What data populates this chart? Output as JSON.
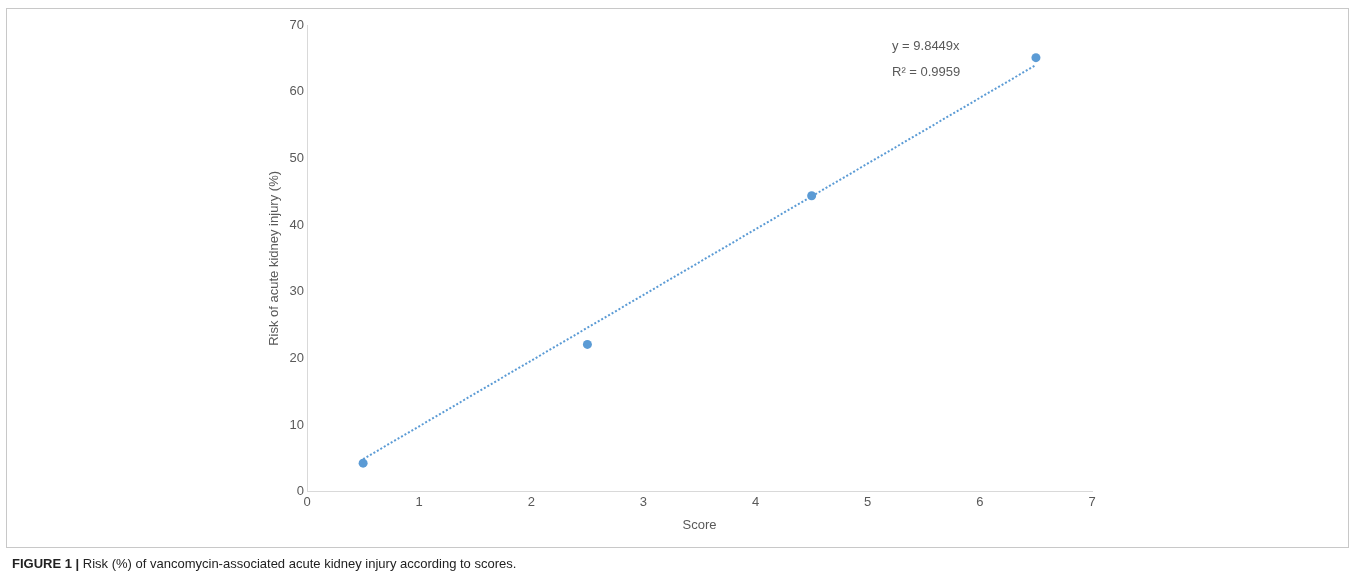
{
  "chart_data": {
    "type": "scatter",
    "xlabel": "Score",
    "ylabel": "Risk of acute kidney injury (%)",
    "xlim": [
      0,
      7
    ],
    "xticks": [
      0,
      1,
      2,
      3,
      4,
      5,
      6,
      7
    ],
    "ylim": [
      0,
      70
    ],
    "yticks": [
      0,
      10,
      20,
      30,
      40,
      50,
      60,
      70
    ],
    "grid": false,
    "legend": false,
    "marker": "circle",
    "series": [
      {
        "type": "scatter",
        "color": "#5b9bd5",
        "x": [
          0.5,
          2.5,
          4.5,
          6.5
        ],
        "values": [
          4.3,
          22.1,
          44.4,
          65.1
        ]
      },
      {
        "type": "line",
        "color": "#5b9bd5",
        "line_style": "dotted",
        "marker": "none",
        "x": [
          0.5,
          6.5
        ],
        "values": [
          4.9,
          64.0
        ]
      }
    ],
    "annotations": [
      "y = 9.8449x",
      "R² = 0.9959",
      "FIGURE 1 | Risk (%) of vancomycin-associated acute kidney injury according to scores."
    ]
  }
}
